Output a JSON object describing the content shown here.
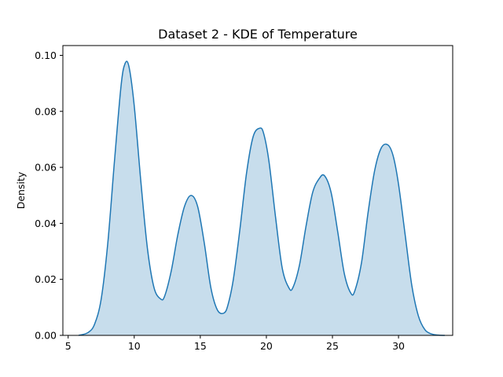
{
  "chart_data": {
    "type": "area",
    "title": "Dataset 2 - KDE of Temperature",
    "xlabel": "",
    "ylabel": "Density",
    "xlim": [
      4.6,
      34.1
    ],
    "ylim": [
      0.0,
      0.1035
    ],
    "xticks": [
      5,
      10,
      15,
      20,
      25,
      30
    ],
    "yticks": [
      0.0,
      0.02,
      0.04,
      0.06,
      0.08,
      0.1
    ],
    "ytick_labels": [
      "0.00",
      "0.02",
      "0.04",
      "0.06",
      "0.08",
      "0.10"
    ],
    "grid": false,
    "legend": "none",
    "line_color": "#1f77b4",
    "fill_color": "#1f77b4",
    "fill_opacity": 0.25,
    "series": [
      {
        "x": [
          5.8,
          6.5,
          7.0,
          7.5,
          8.0,
          8.5,
          9.0,
          9.3,
          9.6,
          10.0,
          10.5,
          11.0,
          11.5,
          12.0,
          12.3,
          12.8,
          13.3,
          13.8,
          14.3,
          14.8,
          15.3,
          15.8,
          16.3,
          16.8,
          17.1,
          17.5,
          18.0,
          18.5,
          19.0,
          19.5,
          19.8,
          20.2,
          20.7,
          21.2,
          21.7,
          22.0,
          22.5,
          23.0,
          23.5,
          24.0,
          24.4,
          24.9,
          25.4,
          25.9,
          26.4,
          26.7,
          27.2,
          27.7,
          28.2,
          28.7,
          29.2,
          29.6,
          30.0,
          30.5,
          31.0,
          31.5,
          32.0,
          32.5,
          33.0,
          33.5
        ],
        "y": [
          0.0,
          0.001,
          0.004,
          0.013,
          0.033,
          0.062,
          0.089,
          0.097,
          0.096,
          0.082,
          0.055,
          0.031,
          0.017,
          0.013,
          0.014,
          0.023,
          0.036,
          0.046,
          0.05,
          0.046,
          0.033,
          0.017,
          0.009,
          0.008,
          0.011,
          0.02,
          0.038,
          0.058,
          0.071,
          0.074,
          0.072,
          0.062,
          0.042,
          0.024,
          0.017,
          0.017,
          0.025,
          0.039,
          0.051,
          0.056,
          0.057,
          0.051,
          0.037,
          0.022,
          0.015,
          0.016,
          0.026,
          0.044,
          0.059,
          0.067,
          0.068,
          0.064,
          0.054,
          0.036,
          0.018,
          0.007,
          0.002,
          0.0005,
          0.0001,
          0.0
        ]
      }
    ]
  }
}
